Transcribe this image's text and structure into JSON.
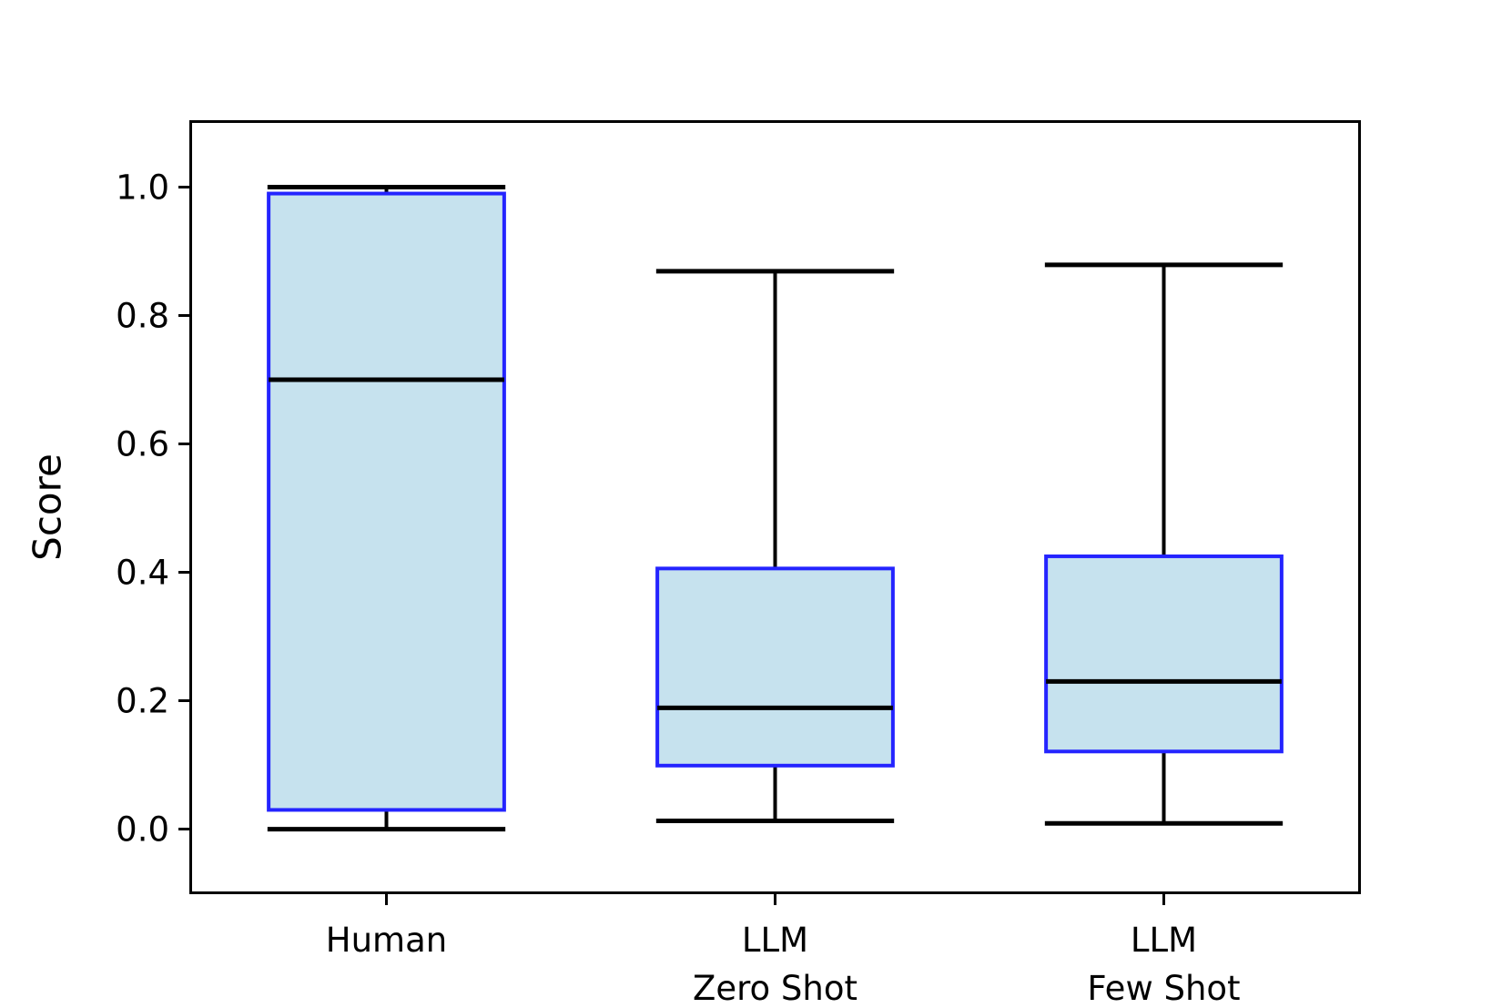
{
  "figure": {
    "background": "#ffffff"
  },
  "chart_data": {
    "type": "boxplot",
    "title": "",
    "xlabel": "",
    "ylabel": "Score",
    "categories": [
      "Human",
      "LLM\nZero Shot",
      "LLM\nFew Shot"
    ],
    "ytick_labels": [
      "0.0",
      "0.2",
      "0.4",
      "0.6",
      "0.8",
      "1.0"
    ],
    "yticks": [
      0.0,
      0.2,
      0.4,
      0.6,
      0.8,
      1.0
    ],
    "ylim": [
      -0.097,
      1.1
    ],
    "xlim_units": [
      0.5,
      3.5
    ],
    "grid": false,
    "legend": "none",
    "series": [
      {
        "label": "Human",
        "whisker_low": 0.0,
        "q1": 0.03,
        "median": 0.7,
        "q3": 0.99,
        "whisker_high": 1.0
      },
      {
        "label": "LLM Zero Shot",
        "whisker_low": 0.013,
        "q1": 0.099,
        "median": 0.189,
        "q3": 0.406,
        "whisker_high": 0.869
      },
      {
        "label": "LLM Few Shot",
        "whisker_low": 0.009,
        "q1": 0.121,
        "median": 0.23,
        "q3": 0.425,
        "whisker_high": 0.879
      }
    ],
    "style": {
      "box_fill": "#c6e2ee",
      "box_edge": "#2424ff",
      "median_color": "#000000",
      "whisker_color": "#000000",
      "spine_color": "#000000",
      "box_width_frac": 0.202,
      "cap_width_frac": 0.102
    }
  }
}
